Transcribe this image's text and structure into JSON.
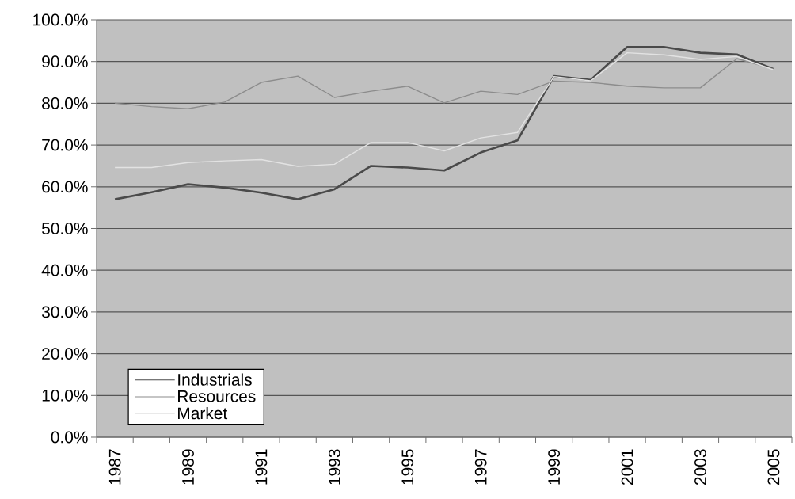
{
  "chart_data": {
    "type": "line",
    "categories": [
      "1987",
      null,
      "1989",
      null,
      "1991",
      null,
      "1993",
      null,
      "1995",
      null,
      "1997",
      null,
      "1999",
      null,
      "2001",
      null,
      "2003",
      null,
      "2005"
    ],
    "series": [
      {
        "name": "Industrials",
        "color": "#4a4a4a",
        "values": [
          57.0,
          58.7,
          60.6,
          59.8,
          58.6,
          57.0,
          59.4,
          65.0,
          64.6,
          63.9,
          68.2,
          71.1,
          86.5,
          85.6,
          93.5,
          93.5,
          92.1,
          91.7,
          88.2
        ]
      },
      {
        "name": "Resources",
        "color": "#8c8c8c",
        "values": [
          80.0,
          79.2,
          78.7,
          80.3,
          85.0,
          86.5,
          81.4,
          82.9,
          84.1,
          80.1,
          82.9,
          82.1,
          85.3,
          85.0,
          84.1,
          83.7,
          83.7,
          90.7,
          88.2
        ]
      },
      {
        "name": "Market",
        "color": "#e2e2e2",
        "values": [
          64.6,
          64.6,
          65.8,
          66.2,
          66.5,
          64.9,
          65.4,
          70.6,
          70.6,
          68.6,
          71.7,
          73.0,
          86.4,
          85.4,
          92.1,
          91.6,
          90.5,
          91.2,
          88.0
        ]
      }
    ],
    "ylim": [
      0,
      100
    ],
    "yticks": [
      {
        "value": 0,
        "label": "0.0%"
      },
      {
        "value": 10,
        "label": "10.0%"
      },
      {
        "value": 20,
        "label": "20.0%"
      },
      {
        "value": 30,
        "label": "30.0%"
      },
      {
        "value": 40,
        "label": "40.0%"
      },
      {
        "value": 50,
        "label": "50.0%"
      },
      {
        "value": 60,
        "label": "60.0%"
      },
      {
        "value": 70,
        "label": "70.0%"
      },
      {
        "value": 80,
        "label": "80.0%"
      },
      {
        "value": 90,
        "label": "90.0%"
      },
      {
        "value": 100,
        "label": "100.0%"
      }
    ],
    "grid": "y",
    "legend": "bottom left"
  }
}
